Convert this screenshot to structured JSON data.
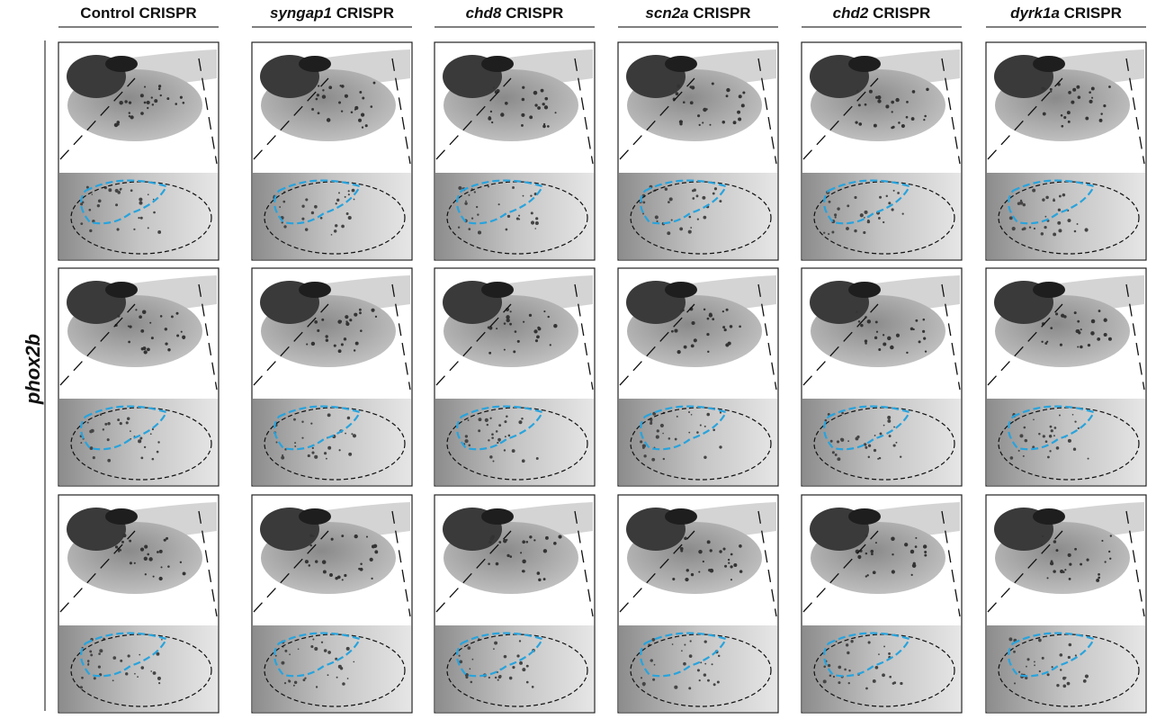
{
  "columns": [
    {
      "text": "Control CRISPR"
    },
    {
      "gene": "syngap1",
      "text": "CRISPR"
    },
    {
      "gene": "chd8",
      "text": "CRISPR"
    },
    {
      "gene": "scn2a",
      "text": "CRISPR"
    },
    {
      "gene": "chd2",
      "text": "CRISPR"
    },
    {
      "gene": "dyrk1a",
      "text": "CRISPR"
    }
  ],
  "row_label": "phox2b"
}
